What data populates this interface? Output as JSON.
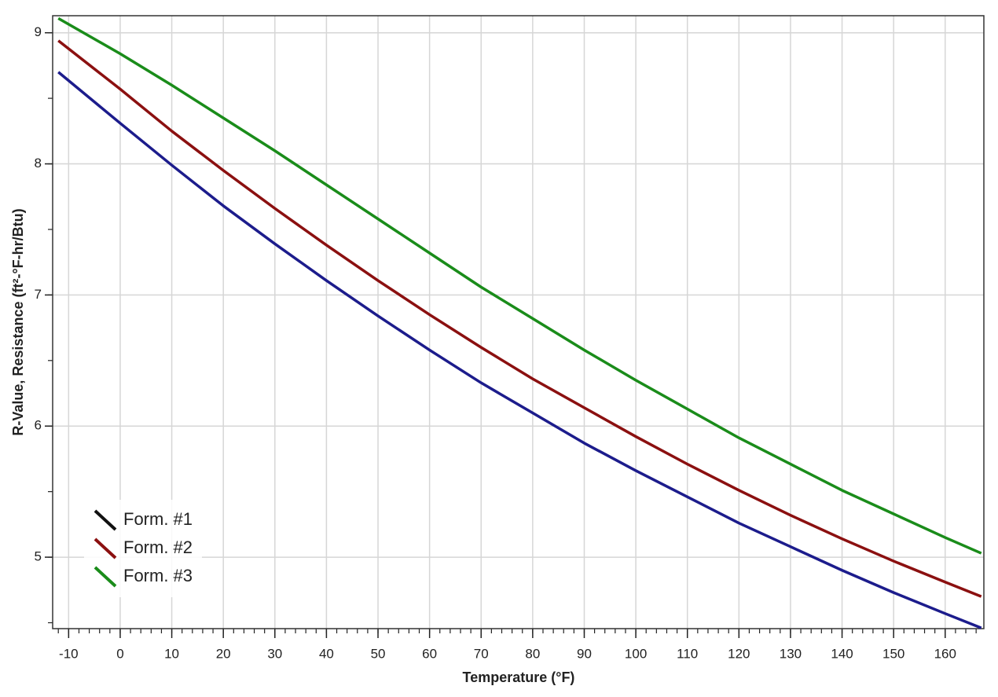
{
  "chart_data": {
    "type": "line",
    "x_label": "Temperature (°F)",
    "y_label": "R-Value, Resistance (ft²-°F-hr/Btu)",
    "x": [
      -12,
      0,
      10,
      20,
      30,
      40,
      50,
      60,
      70,
      80,
      90,
      100,
      110,
      120,
      130,
      140,
      150,
      160,
      167
    ],
    "series": [
      {
        "name": "Form. #1",
        "color": "#1c1c8c",
        "legend_color": "#111111",
        "values": [
          8.7,
          8.31,
          7.99,
          7.68,
          7.39,
          7.11,
          6.84,
          6.58,
          6.33,
          6.1,
          5.87,
          5.66,
          5.46,
          5.26,
          5.08,
          4.9,
          4.73,
          4.57,
          4.46
        ]
      },
      {
        "name": "Form. #2",
        "color": "#8b1010",
        "values": [
          8.94,
          8.57,
          8.25,
          7.95,
          7.66,
          7.38,
          7.11,
          6.85,
          6.6,
          6.36,
          6.14,
          5.92,
          5.71,
          5.51,
          5.32,
          5.14,
          4.97,
          4.81,
          4.7
        ]
      },
      {
        "name": "Form. #3",
        "color": "#1a8c1a",
        "values": [
          9.11,
          8.84,
          8.6,
          8.35,
          8.1,
          7.84,
          7.58,
          7.32,
          7.06,
          6.82,
          6.58,
          6.35,
          6.13,
          5.91,
          5.71,
          5.51,
          5.33,
          5.15,
          5.03
        ]
      }
    ],
    "xlim": [
      -13.1,
      167.5
    ],
    "ylim": [
      4.455,
      9.13
    ],
    "xticks": [
      -10,
      0,
      10,
      20,
      30,
      40,
      50,
      60,
      70,
      80,
      90,
      100,
      110,
      120,
      130,
      140,
      150,
      160
    ],
    "yticks": [
      5,
      6,
      7,
      8,
      9
    ],
    "x_minor_step": 2,
    "y_minor_step": 0.5,
    "grid": true,
    "legend": "lower left"
  }
}
